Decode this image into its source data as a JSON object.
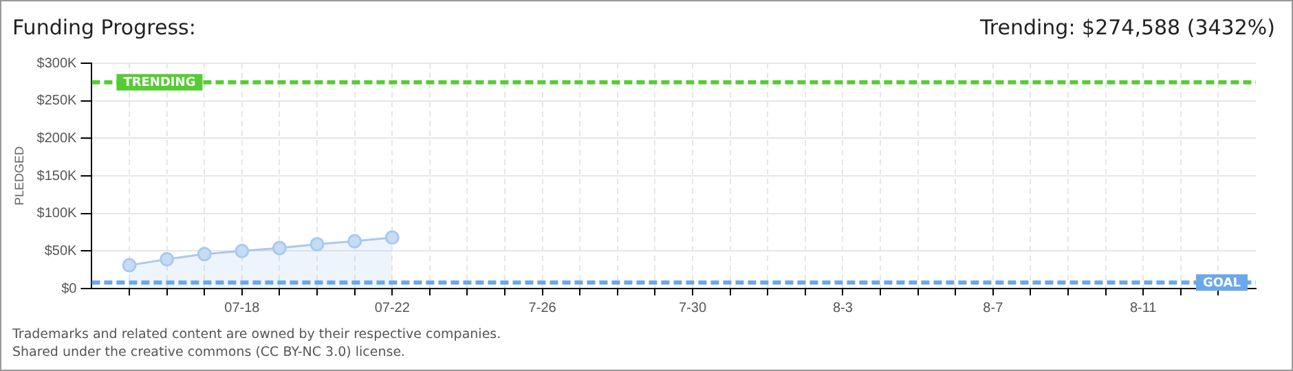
{
  "chart_data": {
    "type": "area",
    "title": "Funding Progress:",
    "subtitle": "Trending: $274,588 (3432%)",
    "ylabel": "PLEDGED",
    "x": [
      "--07-15",
      "--07-16",
      "--07-17",
      "--07-18",
      "--07-19",
      "--07-20",
      "--07-21",
      "--07-22"
    ],
    "series": [
      {
        "color": "#a9c9ee",
        "values": [
          31000,
          39000,
          46000,
          50000,
          54000,
          59000,
          63000,
          68000
        ]
      }
    ],
    "xlim": [
      "--07-14",
      "--08-14"
    ],
    "xticks": [
      {
        "value": "--07-15",
        "label": null
      },
      {
        "value": "--07-16",
        "label": null
      },
      {
        "value": "--07-17",
        "label": null
      },
      {
        "value": "--07-18",
        "label": "07-18"
      },
      {
        "value": "--07-19",
        "label": null
      },
      {
        "value": "--07-20",
        "label": null
      },
      {
        "value": "--07-21",
        "label": null
      },
      {
        "value": "--07-22",
        "label": "07-22"
      },
      {
        "value": "--07-23",
        "label": null
      },
      {
        "value": "--07-24",
        "label": null
      },
      {
        "value": "--07-25",
        "label": null
      },
      {
        "value": "--07-26",
        "label": "7-26"
      },
      {
        "value": "--07-27",
        "label": null
      },
      {
        "value": "--07-28",
        "label": null
      },
      {
        "value": "--07-29",
        "label": null
      },
      {
        "value": "--07-30",
        "label": "7-30"
      },
      {
        "value": "--07-31",
        "label": null
      },
      {
        "value": "--08-01",
        "label": null
      },
      {
        "value": "--08-02",
        "label": null
      },
      {
        "value": "--08-03",
        "label": "8-3"
      },
      {
        "value": "--08-04",
        "label": null
      },
      {
        "value": "--08-05",
        "label": null
      },
      {
        "value": "--08-06",
        "label": null
      },
      {
        "value": "--08-07",
        "label": "8-7"
      },
      {
        "value": "--08-08",
        "label": null
      },
      {
        "value": "--08-09",
        "label": null
      },
      {
        "value": "--08-10",
        "label": null
      },
      {
        "value": "--08-11",
        "label": "8-11"
      },
      {
        "value": "--08-12",
        "label": null
      },
      {
        "value": "--08-13",
        "label": null
      }
    ],
    "ylim": [
      0,
      300000
    ],
    "yticks": [
      {
        "value": 0,
        "label": "$0"
      },
      {
        "value": 50000,
        "label": "$50K"
      },
      {
        "value": 100000,
        "label": "$100K"
      },
      {
        "value": 150000,
        "label": "$150K"
      },
      {
        "value": 200000,
        "label": "$200K"
      },
      {
        "value": 250000,
        "label": "$250K"
      },
      {
        "value": 300000,
        "label": "$300K"
      }
    ],
    "ref_lines": [
      {
        "axis": "y",
        "value": 274588,
        "label": "TRENDING",
        "color": "#55cc33",
        "line_style": "dashed"
      },
      {
        "axis": "y",
        "value": 8000,
        "label": "GOAL",
        "color": "#6aa8e8",
        "line_style": "dashed"
      }
    ],
    "annotations": [
      "Trademarks and related content are owned by their respective companies.",
      "Shared under the creative commons (CC BY-NC 3.0) license."
    ],
    "grid": true,
    "legend": false,
    "marker": "circle",
    "line_style": "solid"
  }
}
